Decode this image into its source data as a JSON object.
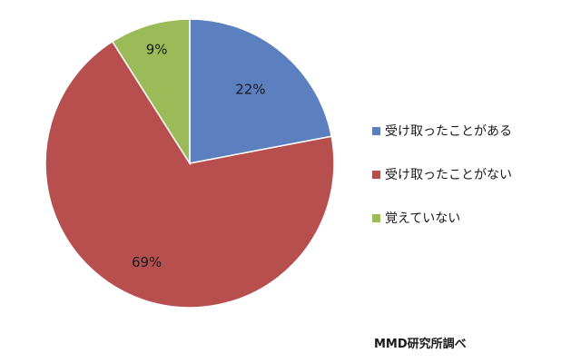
{
  "chart_data": {
    "type": "pie",
    "categories": [
      "受け取ったことがある",
      "受け取ったことがない",
      "覚えていない"
    ],
    "values": [
      22,
      69,
      9
    ],
    "data_labels": [
      "22%",
      "69%",
      "9%"
    ],
    "colors": [
      "#5b7fbf",
      "#b84f4f",
      "#9bbb59"
    ],
    "start": "12 o'clock",
    "direction": "clockwise",
    "legend": "right"
  },
  "legend": {
    "items": [
      {
        "label": "受け取ったことがある",
        "color": "#5b7fbf"
      },
      {
        "label": "受け取ったことがない",
        "color": "#b84f4f"
      },
      {
        "label": "覚えていない",
        "color": "#9bbb59"
      }
    ]
  },
  "source": "MMD研究所調べ"
}
